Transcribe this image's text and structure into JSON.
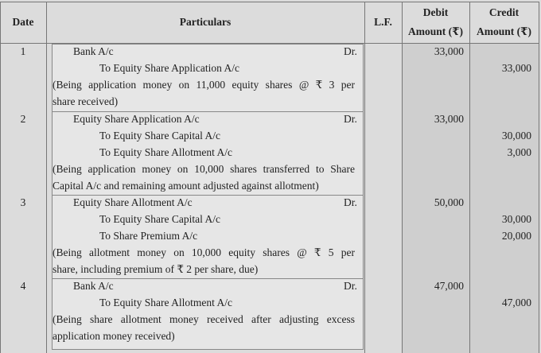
{
  "headers": {
    "date": "Date",
    "particulars": "Particulars",
    "lf": "L.F.",
    "debit_1": "Debit",
    "debit_2": "Amount (₹)",
    "credit_1": "Credit",
    "credit_2": "Amount (₹)"
  },
  "entries": [
    {
      "date": "1",
      "debit_account": "Bank A/c",
      "dr": "Dr.",
      "credits": [
        "To Equity Share Application A/c"
      ],
      "narration": [
        "(Being application money on 11,000 equity shares @ ₹ 3 per",
        "share received)"
      ],
      "debit": "33,000",
      "credit_amounts": [
        "33,000"
      ]
    },
    {
      "date": "2",
      "debit_account": "Equity Share Application A/c",
      "dr": "Dr.",
      "credits": [
        "To Equity Share Capital A/c",
        "To Equity Share Allotment A/c"
      ],
      "narration": [
        "(Being application money on 10,000 shares transferred to Share",
        "Capital A/c and remaining amount adjusted against allotment)"
      ],
      "debit": "33,000",
      "credit_amounts": [
        "30,000",
        "3,000"
      ]
    },
    {
      "date": "3",
      "debit_account": "Equity Share Allotment A/c",
      "dr": "Dr.",
      "credits": [
        "To Equity Share Capital A/c",
        "To Share Premium A/c"
      ],
      "narration": [
        "(Being allotment money on 10,000 equity shares @ ₹ 5 per",
        "share, including premium of ₹ 2 per share, due)"
      ],
      "debit": "50,000",
      "credit_amounts": [
        "30,000",
        "20,000"
      ]
    },
    {
      "date": "4",
      "debit_account": "Bank A/c",
      "dr": "Dr.",
      "credits": [
        "To Equity Share Allotment A/c"
      ],
      "narration": [
        "(Being share allotment money received after adjusting excess",
        "application money received)"
      ],
      "debit": "47,000",
      "credit_amounts": [
        "47,000"
      ]
    }
  ]
}
